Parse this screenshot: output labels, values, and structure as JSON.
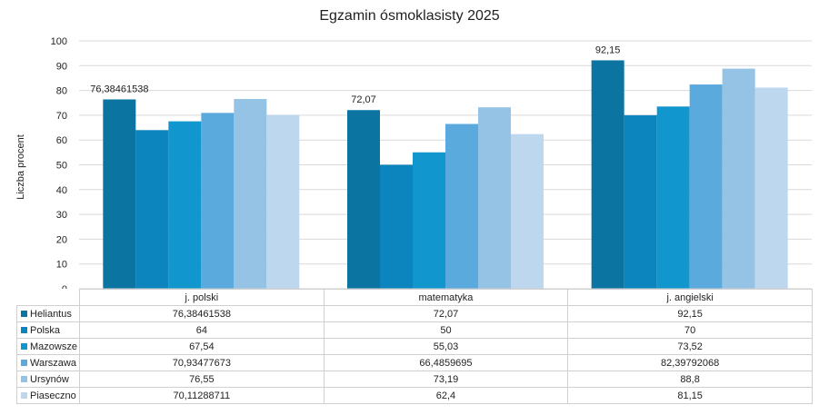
{
  "chart_data": {
    "type": "bar",
    "title": "Egzamin ósmoklasisty 2025",
    "ylabel": "Liczba procent",
    "xlabel": "",
    "ylim": [
      0,
      100
    ],
    "yticks": [
      0,
      10,
      20,
      30,
      40,
      50,
      60,
      70,
      80,
      90,
      100
    ],
    "grid": true,
    "legend": "data table below chart",
    "categories": [
      "j. polski",
      "matematyka",
      "j. angielski"
    ],
    "series": [
      {
        "name": "Heliantus",
        "color": "#0b74a0",
        "values": [
          76.38461538,
          72.07,
          92.15
        ],
        "labels": [
          "76,38461538",
          "72,07",
          "92,15"
        ],
        "show_data_labels": true
      },
      {
        "name": "Polska",
        "color": "#0c84bd",
        "values": [
          64,
          50,
          70
        ],
        "labels": [
          "64",
          "50",
          "70"
        ],
        "show_data_labels": false
      },
      {
        "name": "Mazowsze",
        "color": "#1196ce",
        "values": [
          67.54,
          55.03,
          73.52
        ],
        "labels": [
          "67,54",
          "55,03",
          "73,52"
        ],
        "show_data_labels": false
      },
      {
        "name": "Warszawa",
        "color": "#5aaade",
        "values": [
          70.93477673,
          66.4859695,
          82.39792068
        ],
        "labels": [
          "70,93477673",
          "66,4859695",
          "82,39792068"
        ],
        "show_data_labels": false
      },
      {
        "name": "Ursynów",
        "color": "#94c3e6",
        "values": [
          76.55,
          73.19,
          88.8
        ],
        "labels": [
          "76,55",
          "73,19",
          "88,8"
        ],
        "show_data_labels": false
      },
      {
        "name": "Piaseczno",
        "color": "#bdd8ee",
        "values": [
          70.11288711,
          62.4,
          81.15
        ],
        "labels": [
          "70,11288711",
          "62,4",
          "81,15"
        ],
        "show_data_labels": false
      }
    ]
  }
}
